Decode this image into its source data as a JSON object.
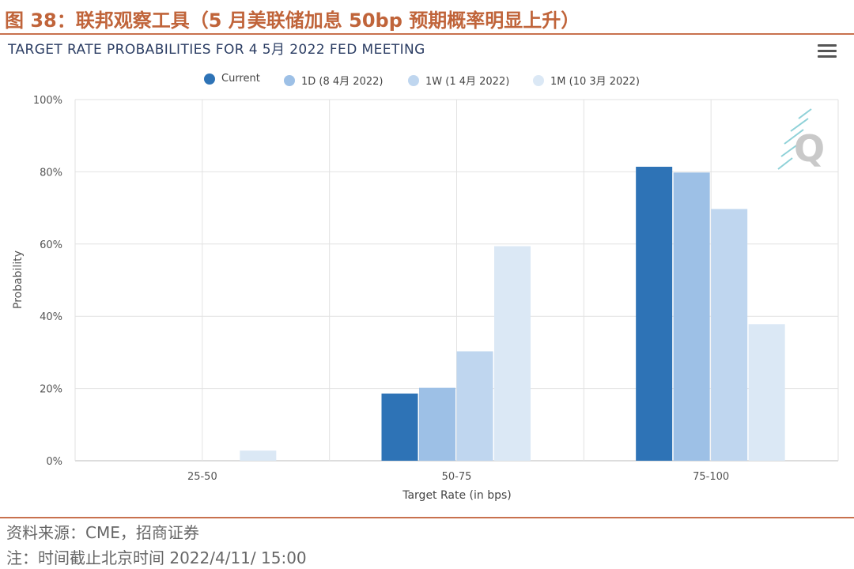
{
  "figure": {
    "title": "图 38：联邦观察工具（5 月美联储加息 50bp 预期概率明显上升）",
    "source": "资料来源：CME，招商证券",
    "note": "注：时间截止北京时间 2022/4/11/ 15:00"
  },
  "chart_data": {
    "type": "bar",
    "title": "TARGET RATE PROBABILITIES FOR 4 5月 2022 FED MEETING",
    "xlabel": "Target Rate (in bps)",
    "ylabel": "Probability",
    "categories": [
      "25-50",
      "50-75",
      "75-100"
    ],
    "y_ticks": [
      "0%",
      "20%",
      "40%",
      "60%",
      "80%",
      "100%"
    ],
    "ylim": [
      0,
      100
    ],
    "grid": true,
    "legend_position": "top-center",
    "series": [
      {
        "name": "Current",
        "color": "#2e73b6",
        "values": [
          0,
          18.6,
          81.4
        ]
      },
      {
        "name": "1D (8 4月 2022)",
        "color": "#9dc0e6",
        "values": [
          0,
          20.2,
          79.8
        ]
      },
      {
        "name": "1W (1 4月 2022)",
        "color": "#bfd6ef",
        "values": [
          0,
          30.3,
          69.7
        ]
      },
      {
        "name": "1M (10 3月 2022)",
        "color": "#dbe8f5",
        "values": [
          2.8,
          59.4,
          37.8
        ]
      }
    ]
  },
  "ui": {
    "menu_icon": "hamburger-menu-icon",
    "watermark_icon": "q-watermark-icon"
  }
}
